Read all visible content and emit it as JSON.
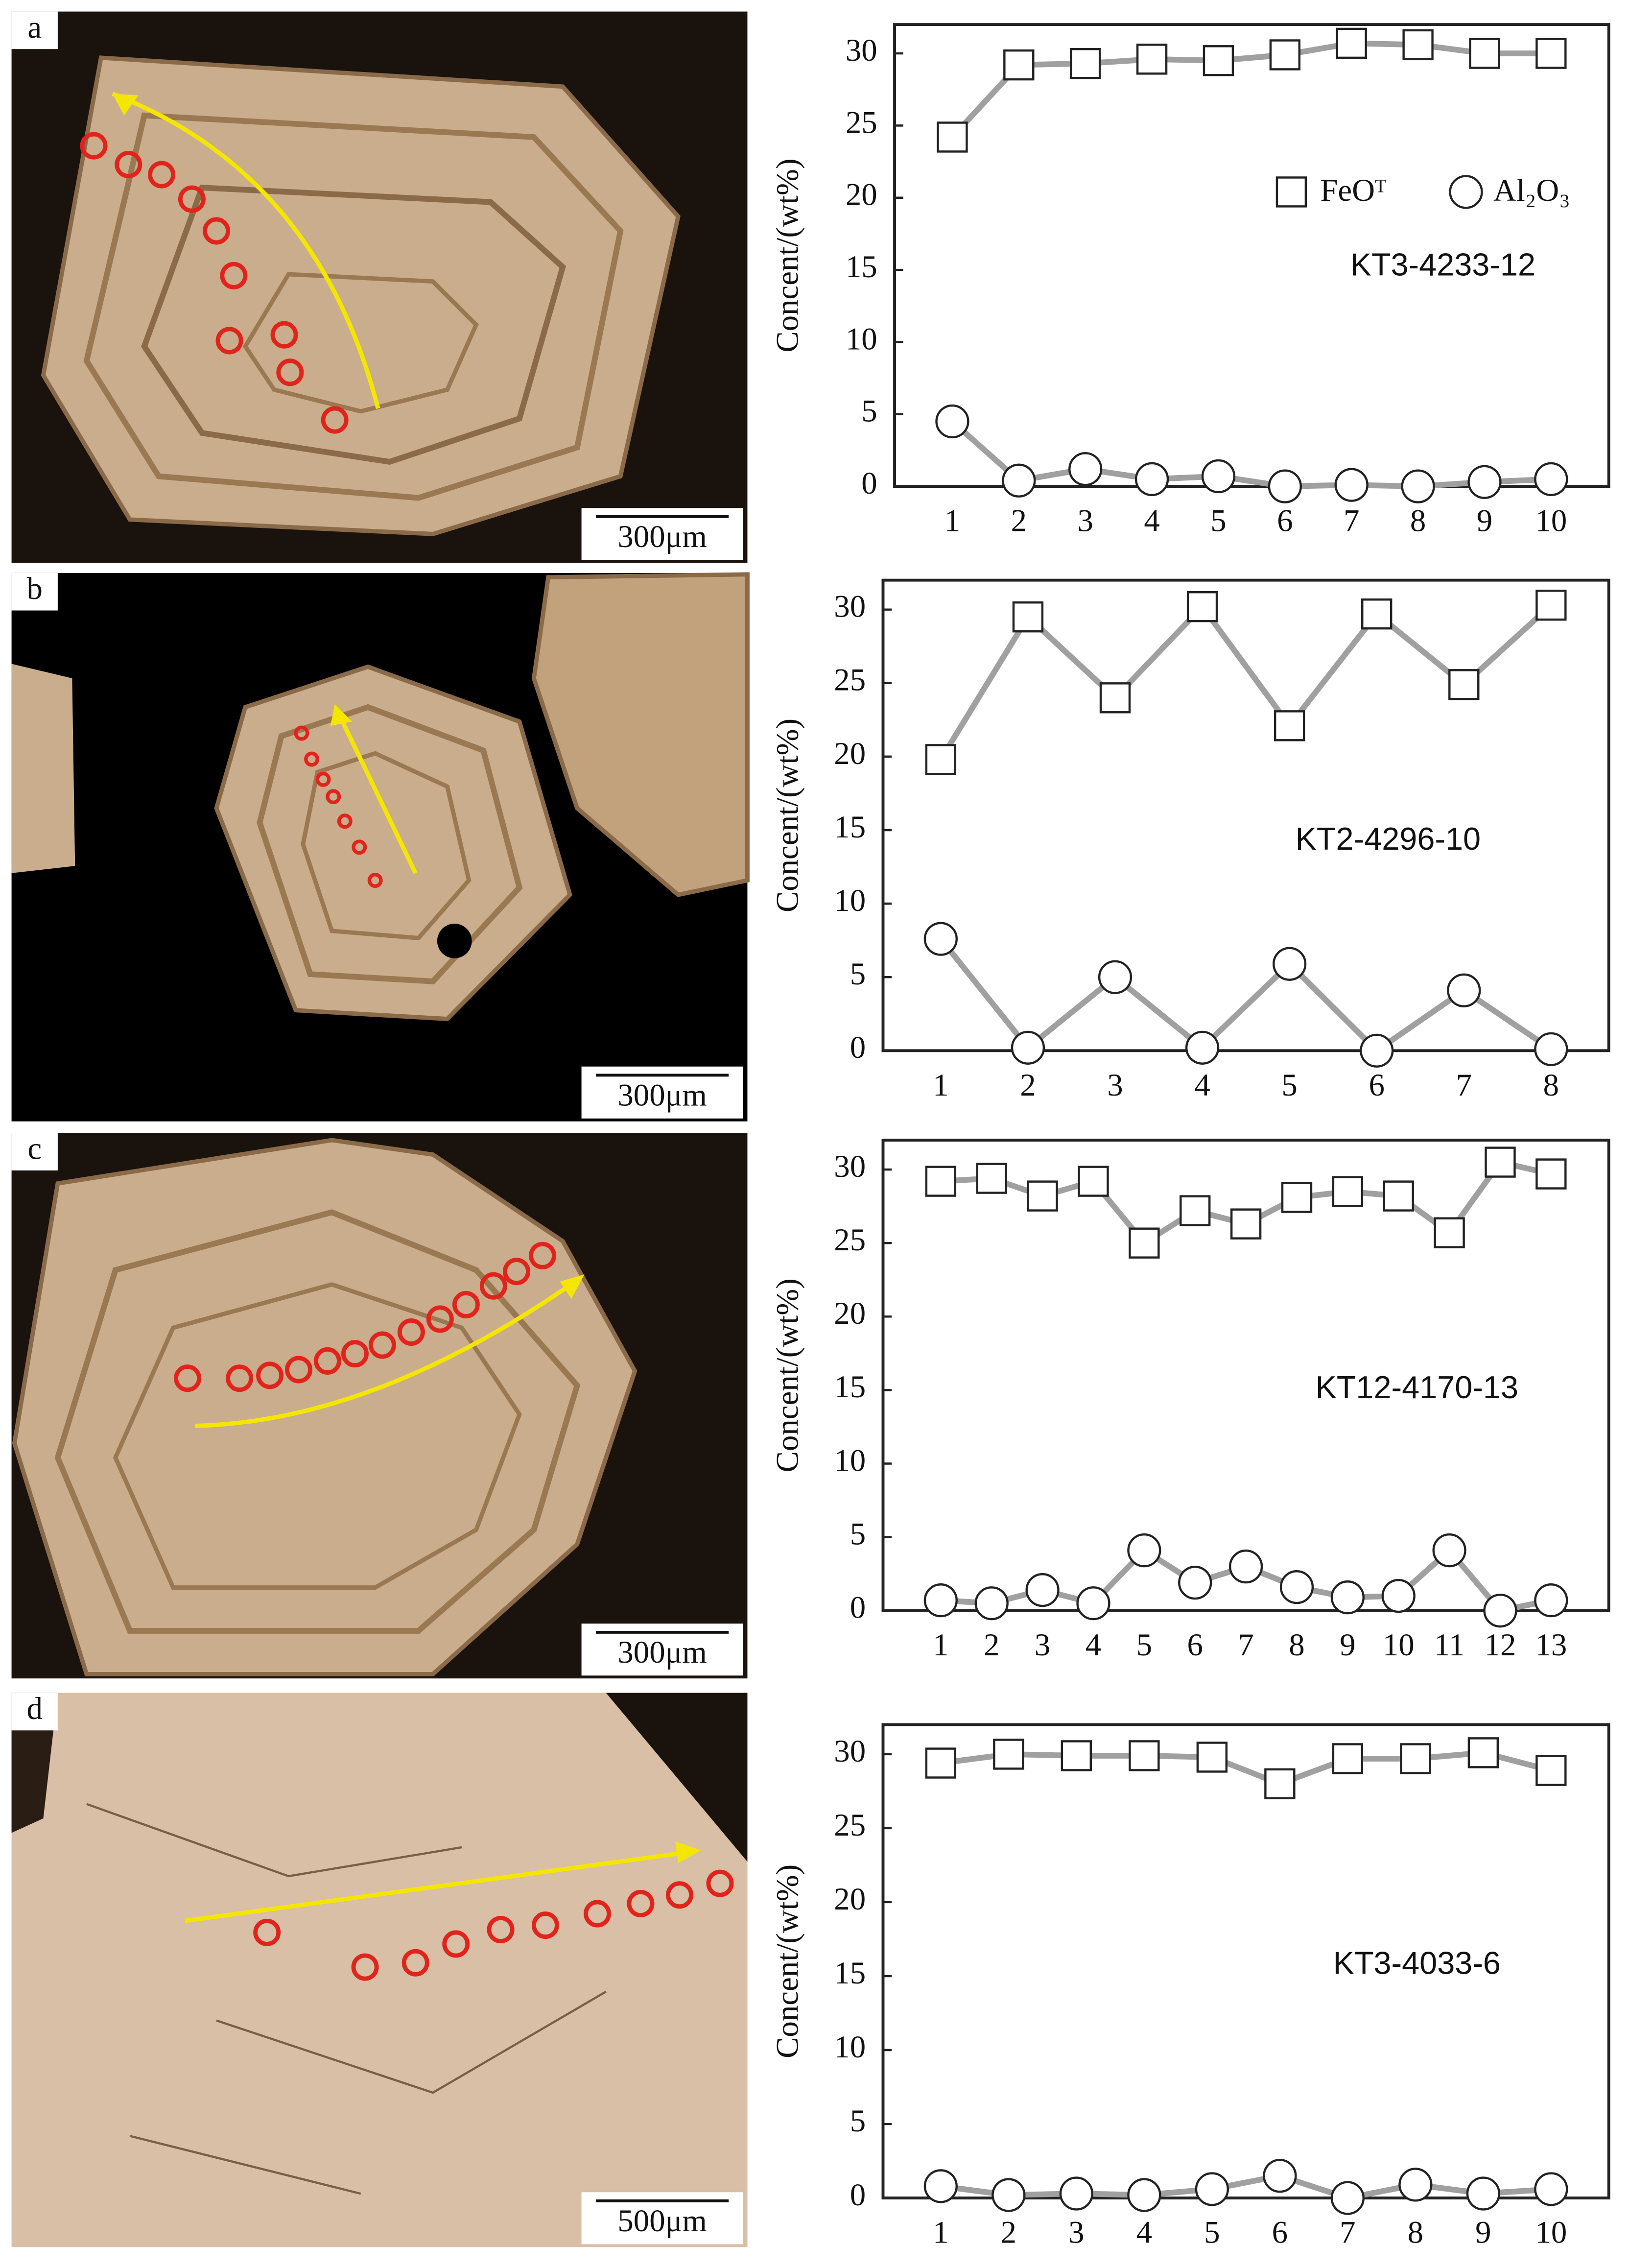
{
  "images": [
    {
      "label": "a",
      "scale_bar": "300μm"
    },
    {
      "label": "b",
      "scale_bar": "300μm"
    },
    {
      "label": "c",
      "scale_bar": "300μm"
    },
    {
      "label": "d",
      "scale_bar": "500μm"
    }
  ],
  "chart_data": [
    {
      "type": "line",
      "y_label": "Concent/(wt%)",
      "annotation": "KT3-4233-12",
      "legend": true,
      "categories": [
        "1",
        "2",
        "3",
        "4",
        "5",
        "6",
        "7",
        "8",
        "9",
        "10"
      ],
      "ylim": [
        0,
        32
      ],
      "yticks": [
        0,
        5,
        10,
        15,
        20,
        25,
        30
      ],
      "series": [
        {
          "name": "FeOᵀ",
          "marker": "square",
          "color": "#a0a0a0",
          "values": [
            24.2,
            29.2,
            29.3,
            29.6,
            29.5,
            29.9,
            30.7,
            30.6,
            30.0,
            30.0
          ]
        },
        {
          "name": "Al₂O₃",
          "marker": "circle",
          "color": "#a0a0a0",
          "values": [
            4.5,
            0.4,
            1.2,
            0.5,
            0.7,
            0.0,
            0.1,
            0.0,
            0.3,
            0.5
          ]
        }
      ]
    },
    {
      "type": "line",
      "y_label": "Concent/(wt%)",
      "annotation": "KT2-4296-10",
      "legend": false,
      "categories": [
        "1",
        "2",
        "3",
        "4",
        "5",
        "6",
        "7",
        "8"
      ],
      "ylim": [
        0,
        32
      ],
      "yticks": [
        0,
        5,
        10,
        15,
        20,
        25,
        30
      ],
      "series": [
        {
          "marker": "square",
          "color": "#a0a0a0",
          "values": [
            19.8,
            29.5,
            24.0,
            30.2,
            22.1,
            29.7,
            24.9,
            30.3
          ]
        },
        {
          "marker": "circle",
          "color": "#a0a0a0",
          "values": [
            7.6,
            0.2,
            5.0,
            0.2,
            5.9,
            0.0,
            4.1,
            0.1
          ]
        }
      ]
    },
    {
      "type": "line",
      "y_label": "Concent/(wt%)",
      "annotation": "KT12-4170-13",
      "legend": false,
      "categories": [
        "1",
        "2",
        "3",
        "4",
        "5",
        "6",
        "7",
        "8",
        "9",
        "10",
        "11",
        "12",
        "13"
      ],
      "ylim": [
        0,
        32
      ],
      "yticks": [
        0,
        5,
        10,
        15,
        20,
        25,
        30
      ],
      "series": [
        {
          "marker": "square",
          "color": "#a0a0a0",
          "values": [
            29.2,
            29.4,
            28.2,
            29.2,
            25.0,
            27.2,
            26.3,
            28.1,
            28.5,
            28.2,
            25.7,
            30.5,
            29.7
          ]
        },
        {
          "marker": "circle",
          "color": "#a0a0a0",
          "values": [
            0.7,
            0.5,
            1.4,
            0.5,
            4.1,
            1.9,
            3.0,
            1.6,
            0.9,
            1.0,
            4.1,
            0.0,
            0.7
          ]
        }
      ]
    },
    {
      "type": "line",
      "y_label": "Concent/(wt%)",
      "annotation": "KT3-4033-6",
      "legend": false,
      "categories": [
        "1",
        "2",
        "3",
        "4",
        "5",
        "6",
        "7",
        "8",
        "9",
        "10"
      ],
      "ylim": [
        0,
        32
      ],
      "yticks": [
        0,
        5,
        10,
        15,
        20,
        25,
        30
      ],
      "series": [
        {
          "marker": "square",
          "color": "#a0a0a0",
          "values": [
            29.4,
            30.0,
            29.9,
            29.9,
            29.8,
            28.0,
            29.7,
            29.7,
            30.1,
            28.9
          ]
        },
        {
          "marker": "circle",
          "color": "#a0a0a0",
          "values": [
            0.8,
            0.2,
            0.3,
            0.2,
            0.6,
            1.5,
            0.0,
            0.9,
            0.3,
            0.6
          ]
        }
      ]
    }
  ]
}
